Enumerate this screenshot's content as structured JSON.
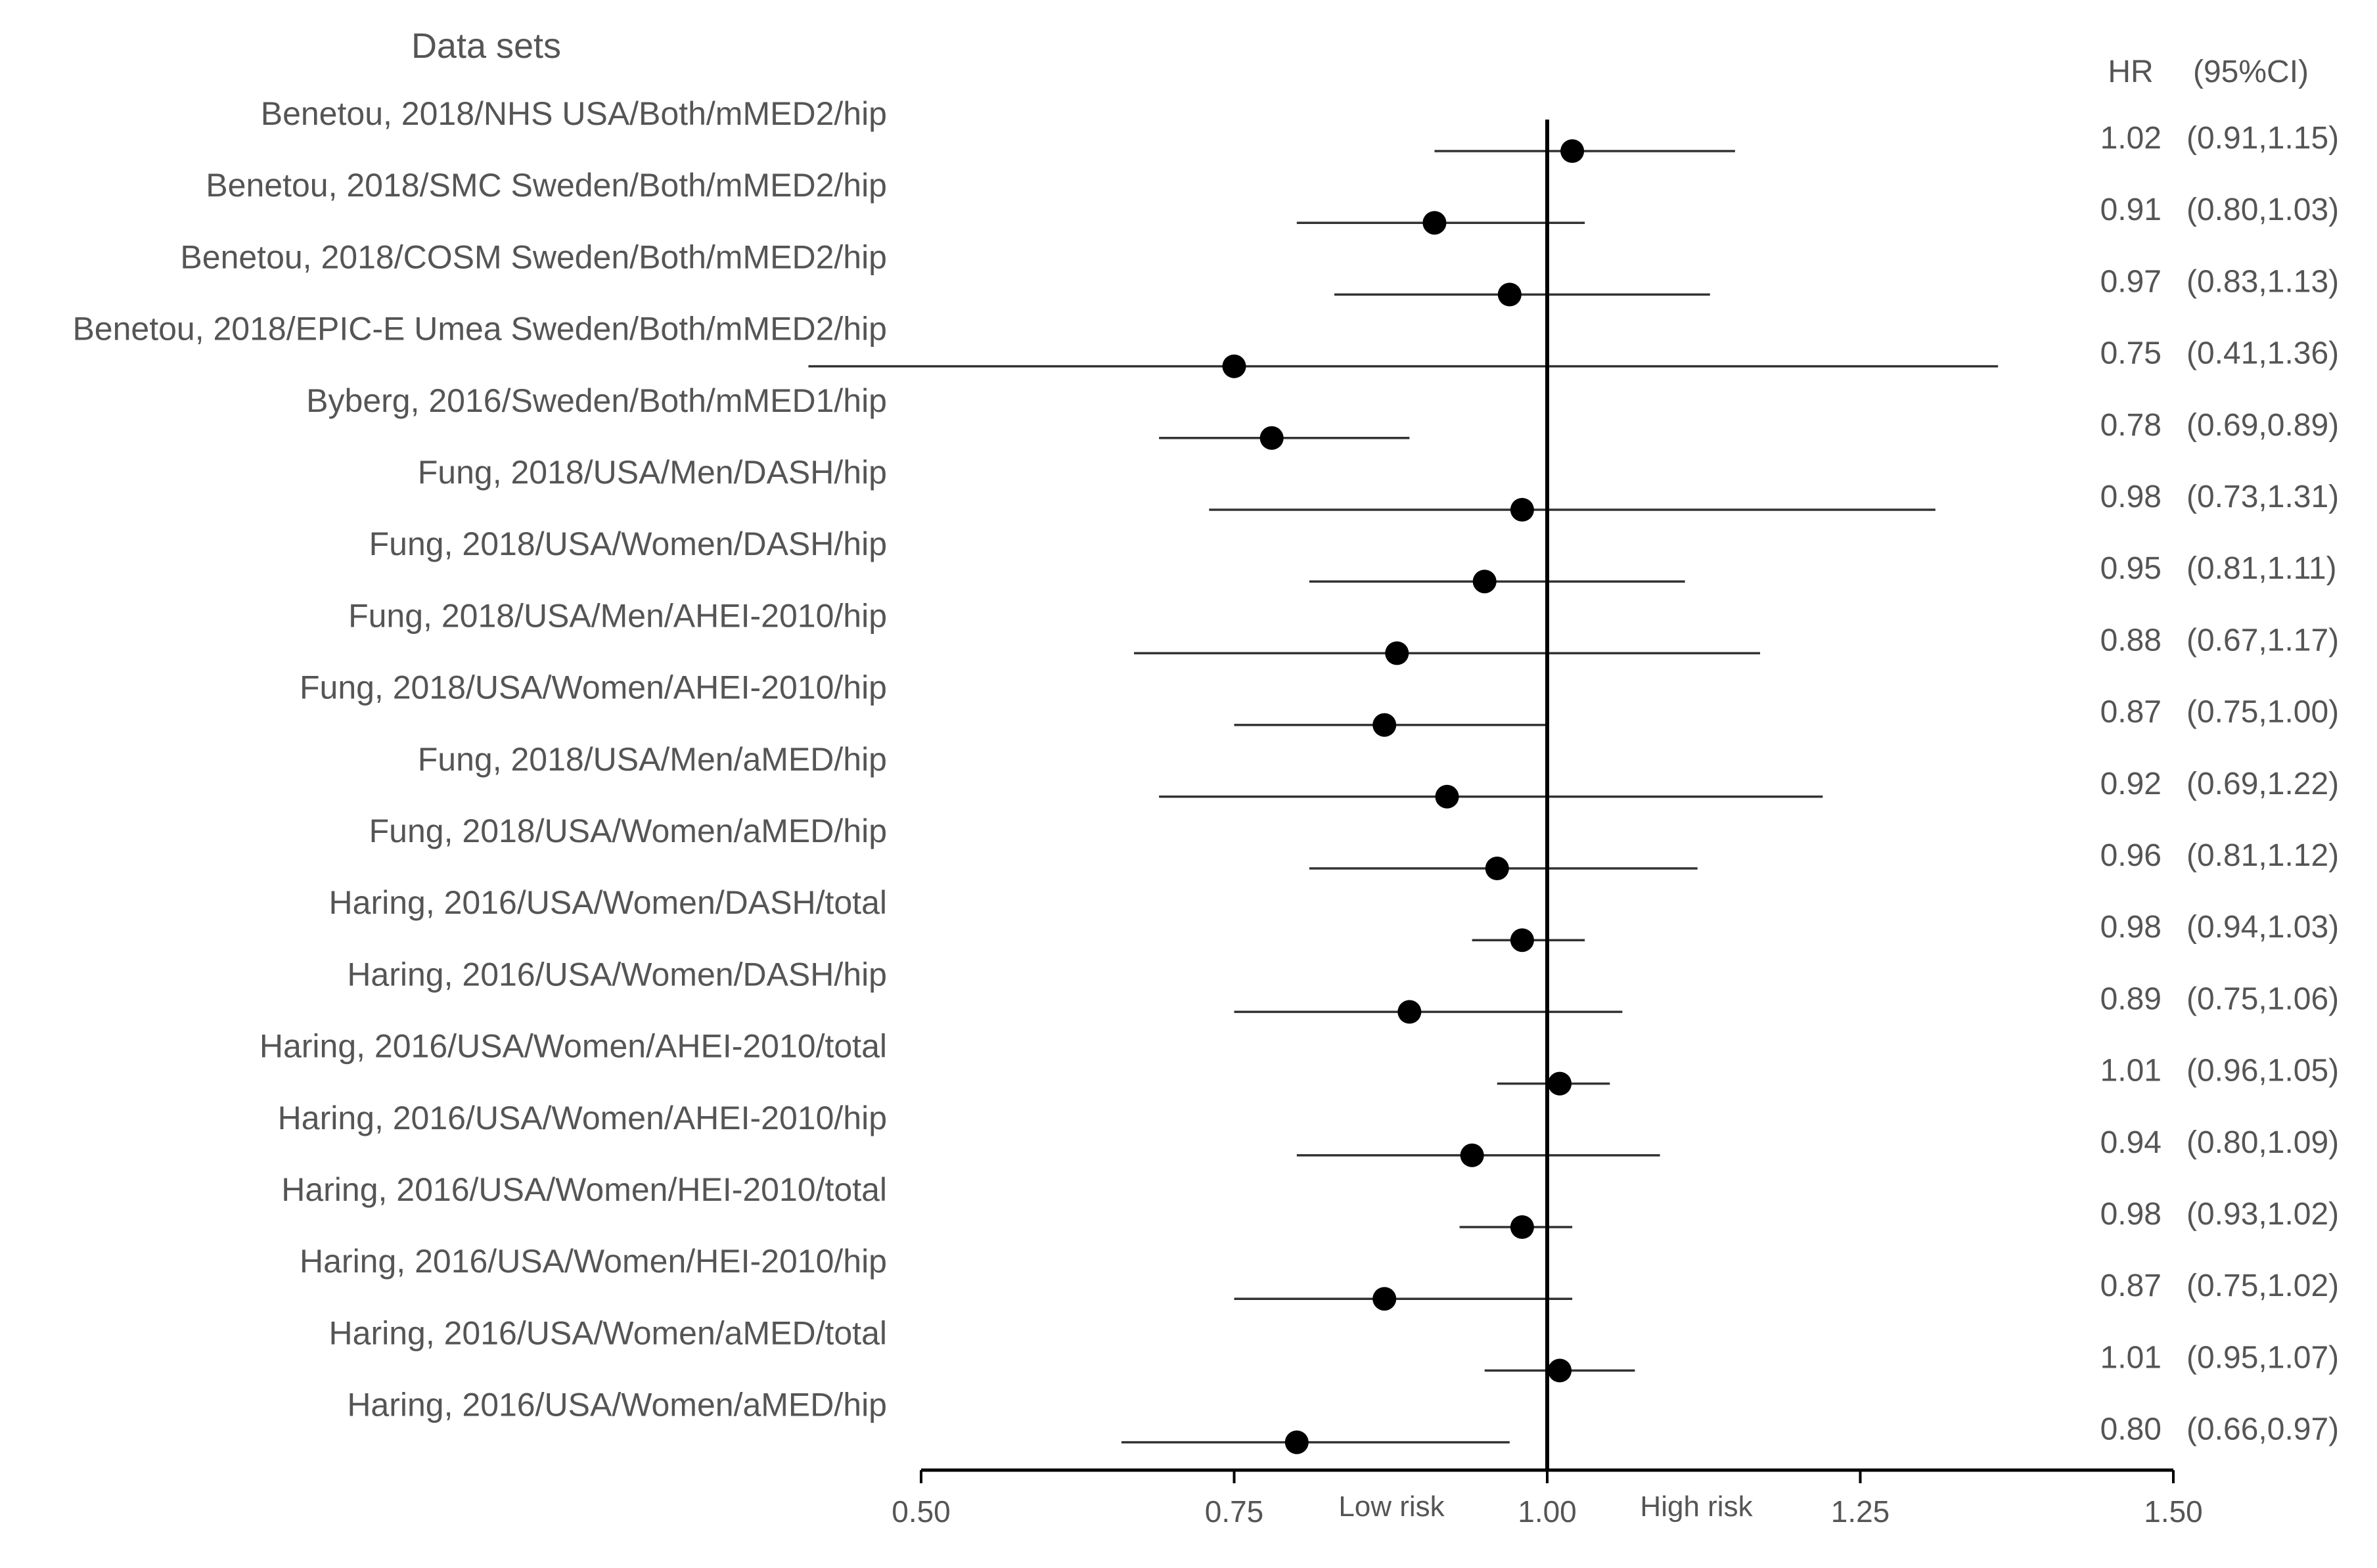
{
  "chart_data": {
    "type": "forest",
    "title": "Data sets",
    "columns": {
      "hr": "HR",
      "ci": "(95%CI)"
    },
    "x_ticks": [
      "0.50",
      "0.75",
      "1.00",
      "1.25",
      "1.50"
    ],
    "xlim": [
      0.5,
      1.5
    ],
    "reference_line": 1.0,
    "annotations": {
      "low": "Low risk",
      "high": "High risk"
    },
    "rows": [
      {
        "label": "Benetou, 2018/NHS USA/Both/mMED2/hip",
        "hr": 1.02,
        "lower": 0.91,
        "upper": 1.15,
        "hr_text": "1.02",
        "ci_text": "(0.91,1.15)"
      },
      {
        "label": "Benetou, 2018/SMC Sweden/Both/mMED2/hip",
        "hr": 0.91,
        "lower": 0.8,
        "upper": 1.03,
        "hr_text": "0.91",
        "ci_text": "(0.80,1.03)"
      },
      {
        "label": "Benetou, 2018/COSM Sweden/Both/mMED2/hip",
        "hr": 0.97,
        "lower": 0.83,
        "upper": 1.13,
        "hr_text": "0.97",
        "ci_text": "(0.83,1.13)"
      },
      {
        "label": "Benetou, 2018/EPIC-E Umea Sweden/Both/mMED2/hip",
        "hr": 0.75,
        "lower": 0.41,
        "upper": 1.36,
        "hr_text": "0.75",
        "ci_text": "(0.41,1.36)"
      },
      {
        "label": "Byberg, 2016/Sweden/Both/mMED1/hip",
        "hr": 0.78,
        "lower": 0.69,
        "upper": 0.89,
        "hr_text": "0.78",
        "ci_text": "(0.69,0.89)"
      },
      {
        "label": "Fung, 2018/USA/Men/DASH/hip",
        "hr": 0.98,
        "lower": 0.73,
        "upper": 1.31,
        "hr_text": "0.98",
        "ci_text": "(0.73,1.31)"
      },
      {
        "label": "Fung, 2018/USA/Women/DASH/hip",
        "hr": 0.95,
        "lower": 0.81,
        "upper": 1.11,
        "hr_text": "0.95",
        "ci_text": "(0.81,1.11)"
      },
      {
        "label": "Fung, 2018/USA/Men/AHEI-2010/hip",
        "hr": 0.88,
        "lower": 0.67,
        "upper": 1.17,
        "hr_text": "0.88",
        "ci_text": "(0.67,1.17)"
      },
      {
        "label": "Fung, 2018/USA/Women/AHEI-2010/hip",
        "hr": 0.87,
        "lower": 0.75,
        "upper": 1.0,
        "hr_text": "0.87",
        "ci_text": "(0.75,1.00)"
      },
      {
        "label": "Fung, 2018/USA/Men/aMED/hip",
        "hr": 0.92,
        "lower": 0.69,
        "upper": 1.22,
        "hr_text": "0.92",
        "ci_text": "(0.69,1.22)"
      },
      {
        "label": "Fung, 2018/USA/Women/aMED/hip",
        "hr": 0.96,
        "lower": 0.81,
        "upper": 1.12,
        "hr_text": "0.96",
        "ci_text": "(0.81,1.12)"
      },
      {
        "label": "Haring, 2016/USA/Women/DASH/total",
        "hr": 0.98,
        "lower": 0.94,
        "upper": 1.03,
        "hr_text": "0.98",
        "ci_text": "(0.94,1.03)"
      },
      {
        "label": "Haring, 2016/USA/Women/DASH/hip",
        "hr": 0.89,
        "lower": 0.75,
        "upper": 1.06,
        "hr_text": "0.89",
        "ci_text": "(0.75,1.06)"
      },
      {
        "label": "Haring, 2016/USA/Women/AHEI-2010/total",
        "hr": 1.01,
        "lower": 0.96,
        "upper": 1.05,
        "hr_text": "1.01",
        "ci_text": "(0.96,1.05)"
      },
      {
        "label": "Haring, 2016/USA/Women/AHEI-2010/hip",
        "hr": 0.94,
        "lower": 0.8,
        "upper": 1.09,
        "hr_text": "0.94",
        "ci_text": "(0.80,1.09)"
      },
      {
        "label": "Haring, 2016/USA/Women/HEI-2010/total",
        "hr": 0.98,
        "lower": 0.93,
        "upper": 1.02,
        "hr_text": "0.98",
        "ci_text": "(0.93,1.02)"
      },
      {
        "label": "Haring, 2016/USA/Women/HEI-2010/hip",
        "hr": 0.87,
        "lower": 0.75,
        "upper": 1.02,
        "hr_text": "0.87",
        "ci_text": "(0.75,1.02)"
      },
      {
        "label": "Haring, 2016/USA/Women/aMED/total",
        "hr": 1.01,
        "lower": 0.95,
        "upper": 1.07,
        "hr_text": "1.01",
        "ci_text": "(0.95,1.07)"
      },
      {
        "label": "Haring, 2016/USA/Women/aMED/hip",
        "hr": 0.8,
        "lower": 0.66,
        "upper": 0.97,
        "hr_text": "0.80",
        "ci_text": "(0.66,0.97)"
      }
    ]
  }
}
